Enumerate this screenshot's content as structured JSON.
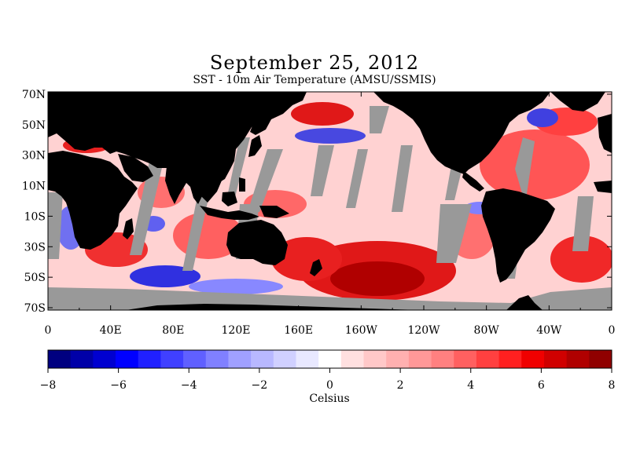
{
  "title": "September 25, 2012",
  "subtitle": "SST - 10m Air Temperature (AMSU/SSMIS)",
  "map": {
    "lat_labels": [
      "70N",
      "50N",
      "30N",
      "10N",
      "10S",
      "30S",
      "50S",
      "70S"
    ],
    "lon_labels": [
      "0",
      "40E",
      "80E",
      "120E",
      "160E",
      "160W",
      "120W",
      "80W",
      "40W",
      "0"
    ],
    "land_color": "#000000",
    "missing_color": "#999999"
  },
  "colorbar": {
    "tick_labels": [
      "−8",
      "−6",
      "−4",
      "−2",
      "0",
      "2",
      "4",
      "6",
      "8"
    ],
    "min": -8,
    "max": 8,
    "unit": "Celsius",
    "colors": [
      "#000080",
      "#0000a8",
      "#0000d0",
      "#0000ff",
      "#2020ff",
      "#4040ff",
      "#6060ff",
      "#8080ff",
      "#a0a0ff",
      "#b8b8ff",
      "#d0d0ff",
      "#e8e8ff",
      "#ffffff",
      "#ffe0e0",
      "#ffc8c8",
      "#ffb0b0",
      "#ff9898",
      "#ff8080",
      "#ff6060",
      "#ff4040",
      "#ff2020",
      "#f00000",
      "#d00000",
      "#b00000",
      "#900000"
    ]
  }
}
